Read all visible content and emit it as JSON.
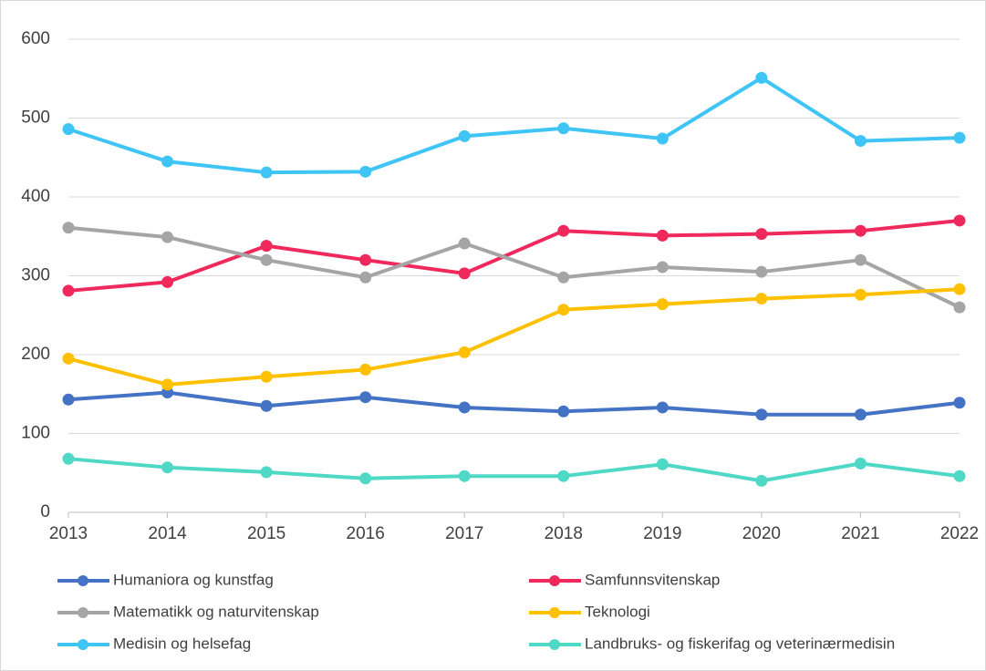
{
  "chart_data": {
    "type": "line",
    "x": [
      2013,
      2014,
      2015,
      2016,
      2017,
      2018,
      2019,
      2020,
      2021,
      2022
    ],
    "xlim": [
      2013,
      2022
    ],
    "xticks": [
      2013,
      2014,
      2015,
      2016,
      2017,
      2018,
      2019,
      2020,
      2021,
      2022
    ],
    "ylim": [
      0,
      600
    ],
    "yticks": [
      0,
      100,
      200,
      300,
      400,
      500,
      600
    ],
    "grid": true,
    "series": [
      {
        "name": "Humaniora og kunstfag",
        "color": "#4472c4",
        "values": [
          143,
          152,
          135,
          146,
          133,
          128,
          133,
          124,
          124,
          139
        ]
      },
      {
        "name": "Samfunnsvitenskap",
        "color": "#f0295c",
        "values": [
          281,
          292,
          338,
          320,
          303,
          357,
          351,
          353,
          357,
          370
        ]
      },
      {
        "name": "Matematikk og naturvitenskap",
        "color": "#a5a5a5",
        "values": [
          361,
          349,
          320,
          298,
          341,
          298,
          311,
          305,
          320,
          260
        ]
      },
      {
        "name": "Teknologi",
        "color": "#ffc000",
        "values": [
          195,
          162,
          172,
          181,
          203,
          257,
          264,
          271,
          276,
          283
        ]
      },
      {
        "name": "Medisin og helsefag",
        "color": "#3fc5f5",
        "values": [
          486,
          445,
          431,
          432,
          477,
          487,
          474,
          551,
          471,
          475
        ]
      },
      {
        "name": "Landbruks- og fiskerifag og veterinærmedisin",
        "color": "#4fd8c6",
        "values": [
          68,
          57,
          51,
          43,
          46,
          46,
          61,
          40,
          62,
          46
        ]
      }
    ]
  }
}
